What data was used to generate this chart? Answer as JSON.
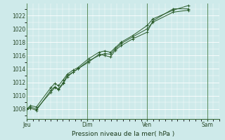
{
  "xlabel": "Pression niveau de la mer( hPa )",
  "bg_color": "#ceeaea",
  "grid_color": "#ffffff",
  "line_color": "#2a5c2a",
  "yticks": [
    1008,
    1010,
    1012,
    1014,
    1016,
    1018,
    1020,
    1022
  ],
  "ylim": [
    1006.5,
    1023.8
  ],
  "xlim": [
    0.0,
    1.0
  ],
  "day_labels": [
    "Jeu",
    "Dim",
    "Ven",
    "Sam"
  ],
  "day_positions": [
    0.0,
    0.3125,
    0.625,
    0.9375
  ],
  "series": [
    {
      "x": [
        0.0,
        0.02,
        0.05,
        0.125,
        0.145,
        0.165,
        0.19,
        0.21,
        0.24,
        0.265,
        0.32,
        0.375,
        0.405,
        0.435,
        0.46,
        0.49,
        0.55,
        0.625,
        0.655,
        0.76,
        0.84
      ],
      "y": [
        1008.0,
        1008.3,
        1008.0,
        1010.5,
        1011.2,
        1010.9,
        1011.8,
        1012.8,
        1013.5,
        1014.0,
        1015.0,
        1016.2,
        1016.0,
        1015.8,
        1016.8,
        1017.5,
        1018.5,
        1019.5,
        1021.2,
        1023.0,
        1023.0
      ]
    },
    {
      "x": [
        0.0,
        0.02,
        0.05,
        0.125,
        0.145,
        0.165,
        0.19,
        0.21,
        0.24,
        0.265,
        0.32,
        0.375,
        0.405,
        0.435,
        0.46,
        0.49,
        0.55,
        0.625,
        0.655,
        0.76,
        0.84
      ],
      "y": [
        1008.0,
        1008.5,
        1008.3,
        1011.2,
        1011.8,
        1011.5,
        1012.4,
        1013.2,
        1013.8,
        1014.2,
        1015.5,
        1016.5,
        1016.7,
        1016.5,
        1017.2,
        1018.0,
        1019.0,
        1020.5,
        1021.5,
        1022.8,
        1023.5
      ]
    },
    {
      "x": [
        0.0,
        0.02,
        0.05,
        0.125,
        0.145,
        0.165,
        0.19,
        0.21,
        0.24,
        0.265,
        0.32,
        0.375,
        0.405,
        0.435,
        0.46,
        0.49,
        0.55,
        0.625,
        0.655,
        0.76,
        0.84
      ],
      "y": [
        1008.0,
        1008.1,
        1007.8,
        1010.8,
        1011.3,
        1011.0,
        1012.0,
        1013.0,
        1013.5,
        1014.0,
        1015.2,
        1016.0,
        1016.3,
        1016.2,
        1017.0,
        1017.8,
        1018.8,
        1020.0,
        1021.0,
        1022.5,
        1022.8
      ]
    }
  ]
}
